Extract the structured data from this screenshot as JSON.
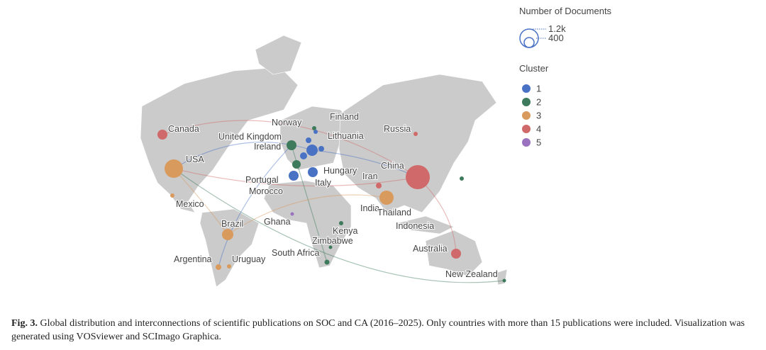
{
  "legend": {
    "size_title": "Number of Documents",
    "sizes": [
      "1.2k",
      "400"
    ],
    "cluster_title": "Cluster",
    "clusters": [
      {
        "label": "1",
        "color": "#4a72c4"
      },
      {
        "label": "2",
        "color": "#3e7a5c"
      },
      {
        "label": "3",
        "color": "#d99a5e"
      },
      {
        "label": "4",
        "color": "#d06a6a"
      },
      {
        "label": "5",
        "color": "#9b72c0"
      }
    ]
  },
  "countries": [
    "Canada",
    "USA",
    "Mexico",
    "Brazil",
    "Argentina",
    "Uruguay",
    "Ghana",
    "Morocco",
    "Portugal",
    "Ireland",
    "United Kingdom",
    "Norway",
    "Finland",
    "Lithuania",
    "Hungary",
    "Italy",
    "Iran",
    "China",
    "Russia",
    "India",
    "Thailand",
    "Indonesia",
    "Kenya",
    "Zimbabwe",
    "South Africa",
    "Australia",
    "New Zealand"
  ],
  "caption": {
    "label": "Fig. 3.",
    "text": "Global distribution and interconnections of scientific publications on SOC and CA (2016–2025). Only countries with more than 15 publications were included. Visualization was generated using VOSviewer and SCImago Graphica."
  }
}
